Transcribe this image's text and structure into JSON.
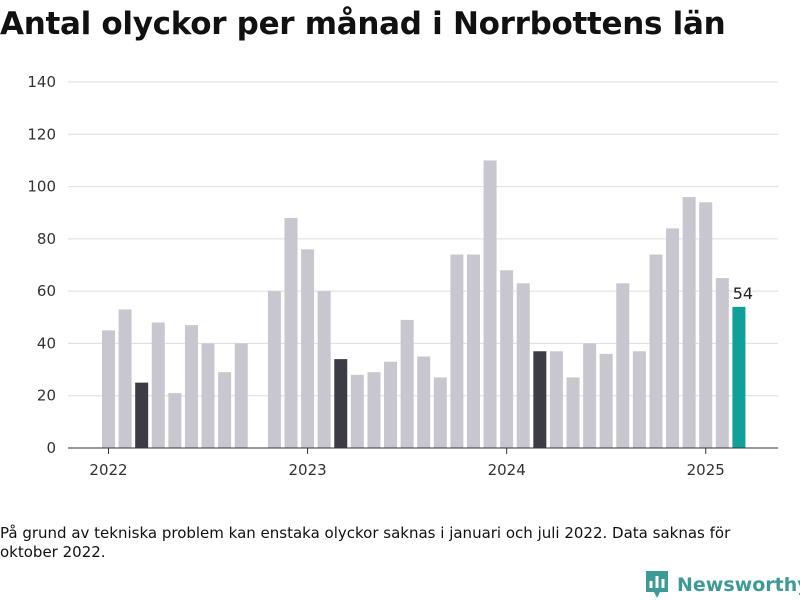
{
  "title": "Antal olyckor per månad i Norrbottens län",
  "footnote": "På grund av tekniska problem kan enstaka olyckor saknas i januari och juli 2022. Data saknas för oktober 2022.",
  "brand": {
    "name": "Newsworthy",
    "icon": "bar-chart-logo-icon"
  },
  "colors": {
    "default": "#c8c7d0",
    "march": "#3c3c46",
    "latest": "#0fa199",
    "brand": "#3d9a95"
  },
  "chart_data": {
    "type": "bar",
    "title": "Antal olyckor per månad i Norrbottens län",
    "xlabel": "",
    "ylabel": "",
    "ylim": [
      0,
      140
    ],
    "yticks": [
      0,
      20,
      40,
      60,
      80,
      100,
      120,
      140
    ],
    "x_tick_labels": [
      "2022",
      "2023",
      "2024",
      "2025"
    ],
    "grid": true,
    "legend": "none",
    "categories": [
      "2022-01",
      "2022-02",
      "2022-03",
      "2022-04",
      "2022-05",
      "2022-06",
      "2022-07",
      "2022-08",
      "2022-09",
      "2022-10",
      "2022-11",
      "2022-12",
      "2023-01",
      "2023-02",
      "2023-03",
      "2023-04",
      "2023-05",
      "2023-06",
      "2023-07",
      "2023-08",
      "2023-09",
      "2023-10",
      "2023-11",
      "2023-12",
      "2024-01",
      "2024-02",
      "2024-03",
      "2024-04",
      "2024-05",
      "2024-06",
      "2024-07",
      "2024-08",
      "2024-09",
      "2024-10",
      "2024-11",
      "2024-12",
      "2025-01",
      "2025-02",
      "2025-03"
    ],
    "values": [
      45,
      53,
      25,
      48,
      21,
      47,
      40,
      29,
      40,
      null,
      60,
      88,
      76,
      60,
      34,
      28,
      29,
      33,
      49,
      35,
      27,
      74,
      74,
      110,
      68,
      63,
      37,
      37,
      27,
      40,
      36,
      63,
      37,
      74,
      84,
      96,
      94,
      65,
      54
    ],
    "highlight": {
      "march": [
        "2022-03",
        "2023-03",
        "2024-03"
      ],
      "latest": "2025-03"
    },
    "data_labels": [
      {
        "category": "2025-03",
        "text": "54"
      }
    ]
  }
}
